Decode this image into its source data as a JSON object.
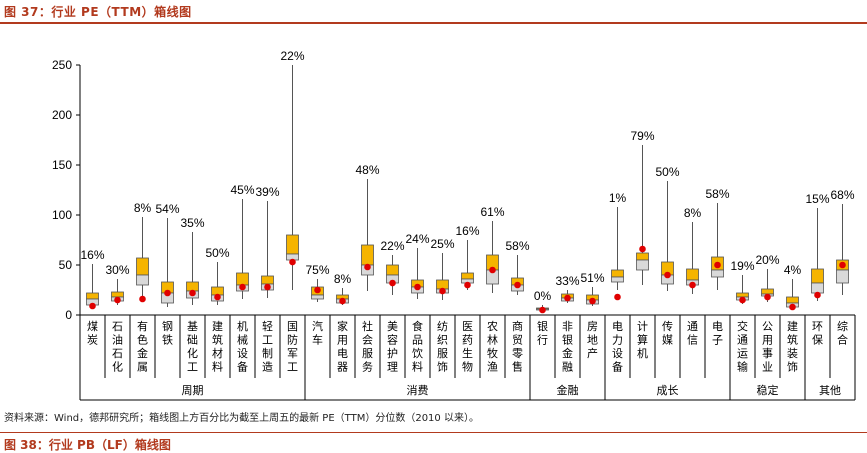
{
  "header": {
    "title": "图 37：行业 PE（TTM）箱线图",
    "next_title": "图 38：行业 PB（LF）箱线图"
  },
  "footnote": "资料来源：Wind，德邦研究所；箱线图上方百分比为截至上周五的最新 PE（TTM）分位数（2010 以来）。",
  "colors": {
    "upper_box": "#f5b400",
    "lower_box": "#d9d9d9",
    "current_dot": "#e00000",
    "accent": "#b23a1e"
  },
  "chart_data": {
    "type": "boxplot",
    "title": "行业 PE（TTM）箱线图",
    "ylim": [
      0,
      250
    ],
    "yticks": [
      0,
      50,
      100,
      150,
      200,
      250
    ],
    "legend": "none",
    "categories": [
      "煤炭",
      "石油石化",
      "有色金属",
      "钢铁",
      "基础化工",
      "建筑材料",
      "机械设备",
      "轻工制造",
      "国防军工",
      "汽车",
      "家用电器",
      "社会服务",
      "美容护理",
      "食品饮料",
      "纺织服饰",
      "医药生物",
      "农林牧渔",
      "商贸零售",
      "银行",
      "非银金融",
      "房地产",
      "电力设备",
      "计算机",
      "传媒",
      "通信",
      "电子",
      "交通运输",
      "公用事业",
      "建筑装饰",
      "环保",
      "综合"
    ],
    "percentiles": [
      "16%",
      "30%",
      "8%",
      "54%",
      "35%",
      "50%",
      "45%",
      "39%",
      "22%",
      "75%",
      "8%",
      "48%",
      "22%",
      "24%",
      "25%",
      "16%",
      "61%",
      "58%",
      "0%",
      "33%",
      "51%",
      "1%",
      "79%",
      "50%",
      "8%",
      "58%",
      "19%",
      "20%",
      "4%",
      "15%",
      "68%"
    ],
    "series": [
      {
        "name": "max",
        "values": [
          51,
          36,
          98,
          97,
          83,
          53,
          116,
          114,
          250,
          36,
          27,
          136,
          60,
          67,
          62,
          75,
          94,
          60,
          10,
          25,
          28,
          108,
          170,
          134,
          93,
          112,
          40,
          46,
          36,
          107,
          111
        ]
      },
      {
        "name": "q3",
        "values": [
          22,
          23,
          57,
          33,
          33,
          28,
          42,
          39,
          80,
          28,
          20,
          70,
          50,
          35,
          35,
          42,
          60,
          37,
          7,
          21,
          20,
          45,
          62,
          53,
          46,
          58,
          22,
          26,
          18,
          46,
          55
        ]
      },
      {
        "name": "median",
        "values": [
          16,
          18,
          40,
          22,
          24,
          20,
          30,
          31,
          61,
          20,
          16,
          50,
          40,
          28,
          26,
          36,
          45,
          30,
          6,
          17,
          15,
          38,
          55,
          40,
          35,
          45,
          18,
          21,
          12,
          32,
          45
        ]
      },
      {
        "name": "q1",
        "values": [
          10,
          14,
          30,
          12,
          17,
          14,
          24,
          25,
          55,
          16,
          12,
          40,
          32,
          22,
          22,
          32,
          31,
          24,
          5,
          14,
          11,
          33,
          45,
          31,
          30,
          38,
          15,
          19,
          8,
          22,
          32
        ]
      },
      {
        "name": "min",
        "values": [
          6,
          10,
          17,
          8,
          10,
          10,
          16,
          17,
          25,
          13,
          10,
          24,
          20,
          16,
          15,
          25,
          22,
          20,
          4,
          12,
          9,
          25,
          30,
          24,
          21,
          25,
          11,
          13,
          6,
          14,
          20
        ]
      },
      {
        "name": "current",
        "values": [
          9,
          15,
          16,
          22,
          22,
          18,
          28,
          28,
          53,
          25,
          14,
          48,
          32,
          28,
          24,
          30,
          45,
          30,
          5,
          17,
          14,
          18,
          66,
          40,
          30,
          50,
          15,
          18,
          8,
          20,
          50
        ]
      }
    ],
    "groups": [
      {
        "label": "周期",
        "count": 9
      },
      {
        "label": "消费",
        "count": 9
      },
      {
        "label": "金融",
        "count": 3
      },
      {
        "label": "成长",
        "count": 5
      },
      {
        "label": "稳定",
        "count": 3
      },
      {
        "label": "其他",
        "count": 2
      }
    ]
  }
}
